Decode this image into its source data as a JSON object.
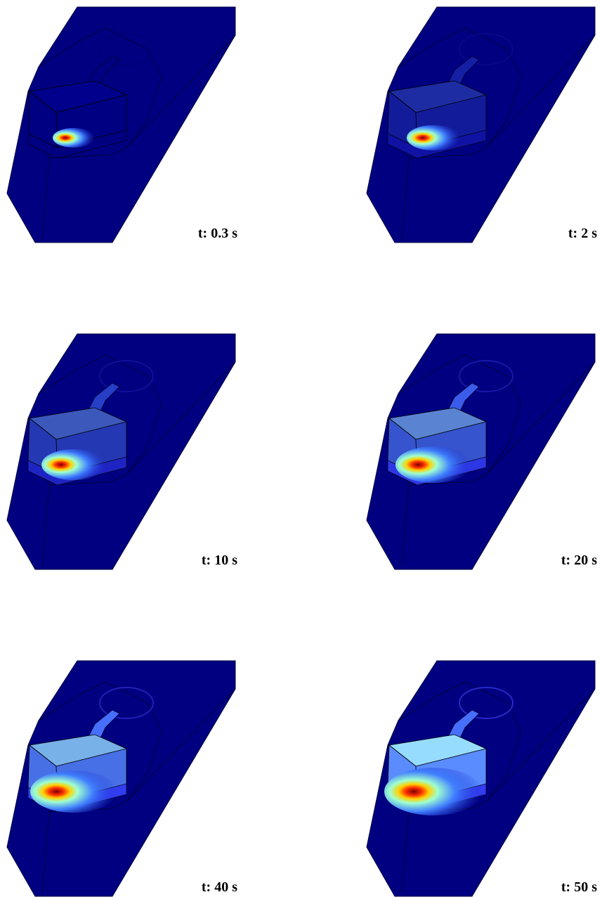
{
  "panels": [
    {
      "label": "t: 0.3 s"
    },
    {
      "label": "t: 2 s"
    },
    {
      "label": "t: 10 s"
    },
    {
      "label": "t: 20 s"
    },
    {
      "label": "t: 40 s"
    },
    {
      "label": "t: 50 s"
    }
  ]
}
